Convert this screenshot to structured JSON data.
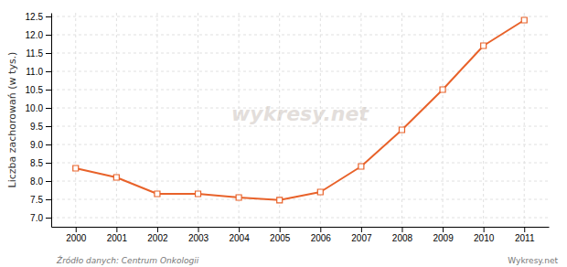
{
  "chart_data": {
    "type": "line",
    "ylabel": "Liczba zachorowań (w tys.)",
    "x": [
      2000,
      2001,
      2002,
      2003,
      2004,
      2005,
      2006,
      2007,
      2008,
      2009,
      2010,
      2011
    ],
    "values": [
      8.35,
      8.1,
      7.65,
      7.65,
      7.55,
      7.48,
      7.7,
      8.4,
      9.4,
      10.5,
      11.7,
      12.4
    ],
    "color": "#e8622a",
    "marker": "square",
    "xlim": [
      1999.4,
      2011.6
    ],
    "xticks": [
      2000,
      2001,
      2002,
      2003,
      2004,
      2005,
      2006,
      2007,
      2008,
      2009,
      2010,
      2011
    ],
    "ylim": [
      6.75,
      12.6
    ],
    "yticks": [
      {
        "value": 7.0,
        "label": "7.0"
      },
      7.5,
      {
        "value": 8.0,
        "label": "8.0"
      },
      8.5,
      {
        "value": 9.0,
        "label": "9.0"
      },
      9.5,
      {
        "value": 10.0,
        "label": "10.0"
      },
      10.5,
      {
        "value": 11.0,
        "label": "11.0"
      },
      11.5,
      {
        "value": 12.0,
        "label": "12.0"
      },
      12.5
    ],
    "grid": true,
    "annotations": [
      "wykresy.net",
      "Źródło danych:  Centrum Onkologii",
      "Wykresy.net"
    ]
  }
}
